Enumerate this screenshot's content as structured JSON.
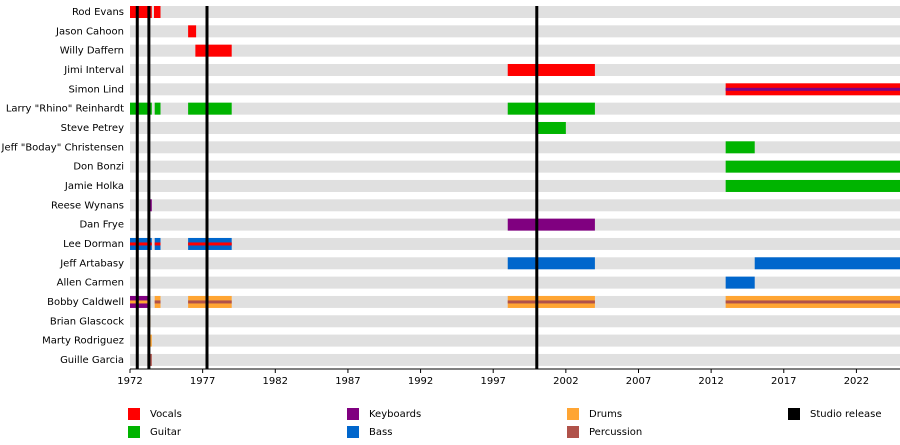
{
  "chart_data": {
    "type": "timeline",
    "xlim": [
      1972,
      2025
    ],
    "xticks": [
      1972,
      1977,
      1982,
      1987,
      1992,
      1997,
      2002,
      2007,
      2012,
      2017,
      2022
    ],
    "roles": [
      {
        "name": "Vocals",
        "color": "#ff0000"
      },
      {
        "name": "Guitar",
        "color": "#00b400"
      },
      {
        "name": "Keyboards",
        "color": "#800080"
      },
      {
        "name": "Bass",
        "color": "#0066cc"
      },
      {
        "name": "Drums",
        "color": "#ffa533"
      },
      {
        "name": "Percussion",
        "color": "#b0524a"
      }
    ],
    "releases": {
      "name": "Studio release",
      "color": "#000000",
      "values": [
        1972.5,
        1973.3,
        1977.3,
        2000.0
      ]
    },
    "members": [
      {
        "name": "Rod Evans",
        "periods": [
          {
            "start": 1972,
            "end": 1973.5,
            "role": "Vocals"
          },
          {
            "start": 1973.65,
            "end": 1974.1,
            "role": "Vocals"
          }
        ]
      },
      {
        "name": "Jason Cahoon",
        "periods": [
          {
            "start": 1976,
            "end": 1976.55,
            "role": "Vocals"
          }
        ]
      },
      {
        "name": "Willy Daffern",
        "periods": [
          {
            "start": 1976.5,
            "end": 1979,
            "role": "Vocals"
          }
        ]
      },
      {
        "name": "Jimi Interval",
        "periods": [
          {
            "start": 1998,
            "end": 2004,
            "role": "Vocals"
          }
        ]
      },
      {
        "name": "Simon Lind",
        "periods": [
          {
            "start": 2013,
            "end": 2025,
            "role": "Vocals",
            "role2": "Keyboards"
          }
        ]
      },
      {
        "name": "Larry \"Rhino\" Reinhardt",
        "periods": [
          {
            "start": 1972,
            "end": 1973.5,
            "role": "Guitar"
          },
          {
            "start": 1973.7,
            "end": 1974.1,
            "role": "Guitar"
          },
          {
            "start": 1976,
            "end": 1979,
            "role": "Guitar"
          },
          {
            "start": 1998,
            "end": 2004,
            "role": "Guitar"
          }
        ]
      },
      {
        "name": "Steve Petrey",
        "periods": [
          {
            "start": 2000,
            "end": 2002,
            "role": "Guitar"
          }
        ]
      },
      {
        "name": "Jeff \"Boday\" Christensen",
        "periods": [
          {
            "start": 2013,
            "end": 2015,
            "role": "Guitar"
          }
        ]
      },
      {
        "name": "Don Bonzi",
        "periods": [
          {
            "start": 2013,
            "end": 2025,
            "role": "Guitar"
          }
        ]
      },
      {
        "name": "Jamie Holka",
        "periods": [
          {
            "start": 2013,
            "end": 2025,
            "role": "Guitar"
          }
        ]
      },
      {
        "name": "Reese Wynans",
        "periods": [
          {
            "start": 1973.25,
            "end": 1973.5,
            "role": "Keyboards"
          }
        ]
      },
      {
        "name": "Dan Frye",
        "periods": [
          {
            "start": 1998,
            "end": 2004,
            "role": "Keyboards"
          }
        ]
      },
      {
        "name": "Lee Dorman",
        "periods": [
          {
            "start": 1972,
            "end": 1973.5,
            "role": "Bass",
            "role2": "Vocals"
          },
          {
            "start": 1973.7,
            "end": 1974.1,
            "role": "Bass",
            "role2": "Vocals"
          },
          {
            "start": 1976,
            "end": 1979,
            "role": "Bass",
            "role2": "Vocals"
          }
        ]
      },
      {
        "name": "Jeff Artabasy",
        "periods": [
          {
            "start": 1998,
            "end": 2004,
            "role": "Bass"
          },
          {
            "start": 2015,
            "end": 2025,
            "role": "Bass"
          }
        ]
      },
      {
        "name": "Allen Carmen",
        "periods": [
          {
            "start": 2013,
            "end": 2015,
            "role": "Bass"
          }
        ]
      },
      {
        "name": "Bobby Caldwell",
        "periods": [
          {
            "start": 1972,
            "end": 1973.3,
            "role": "Keyboards",
            "role2": "Drums"
          },
          {
            "start": 1973.7,
            "end": 1974.1,
            "role": "Drums",
            "role2": "Percussion"
          },
          {
            "start": 1976,
            "end": 1979,
            "role": "Drums",
            "role2": "Percussion"
          },
          {
            "start": 1998,
            "end": 2004,
            "role": "Drums",
            "role2": "Percussion"
          },
          {
            "start": 2013,
            "end": 2025,
            "role": "Drums",
            "role2": "Percussion"
          }
        ]
      },
      {
        "name": "Brian Glascock",
        "periods": [
          {
            "start": 1973.2,
            "end": 1973.4,
            "role": "Drums"
          }
        ]
      },
      {
        "name": "Marty Rodriguez",
        "periods": [
          {
            "start": 1973.25,
            "end": 1973.5,
            "role": "Drums"
          }
        ]
      },
      {
        "name": "Guille Garcia",
        "periods": [
          {
            "start": 1973.2,
            "end": 1973.5,
            "role": "Percussion"
          }
        ]
      }
    ]
  }
}
